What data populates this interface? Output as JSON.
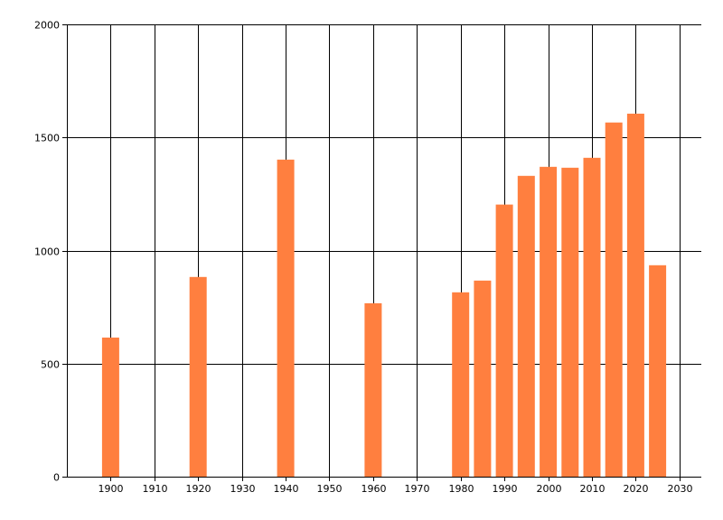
{
  "chart_data": {
    "type": "bar",
    "title": "",
    "xlabel": "",
    "ylabel": "",
    "x": [
      1900,
      1920,
      1940,
      1960,
      1980,
      1985,
      1990,
      1995,
      2000,
      2005,
      2010,
      2015,
      2020,
      2025
    ],
    "values": [
      615,
      883,
      1402,
      767,
      815,
      867,
      1203,
      1330,
      1370,
      1366,
      1410,
      1566,
      1605,
      935
    ],
    "xlim": [
      1890,
      2035
    ],
    "ylim": [
      0,
      2000
    ],
    "x_ticks": [
      1900,
      1910,
      1920,
      1930,
      1940,
      1950,
      1960,
      1970,
      1980,
      1990,
      2000,
      2010,
      2020,
      2030
    ],
    "y_ticks": [
      0,
      500,
      1000,
      1500,
      2000
    ],
    "grid": true,
    "legend": "none",
    "bar_color": "#ff7f3f",
    "grid_color": "#000000"
  }
}
